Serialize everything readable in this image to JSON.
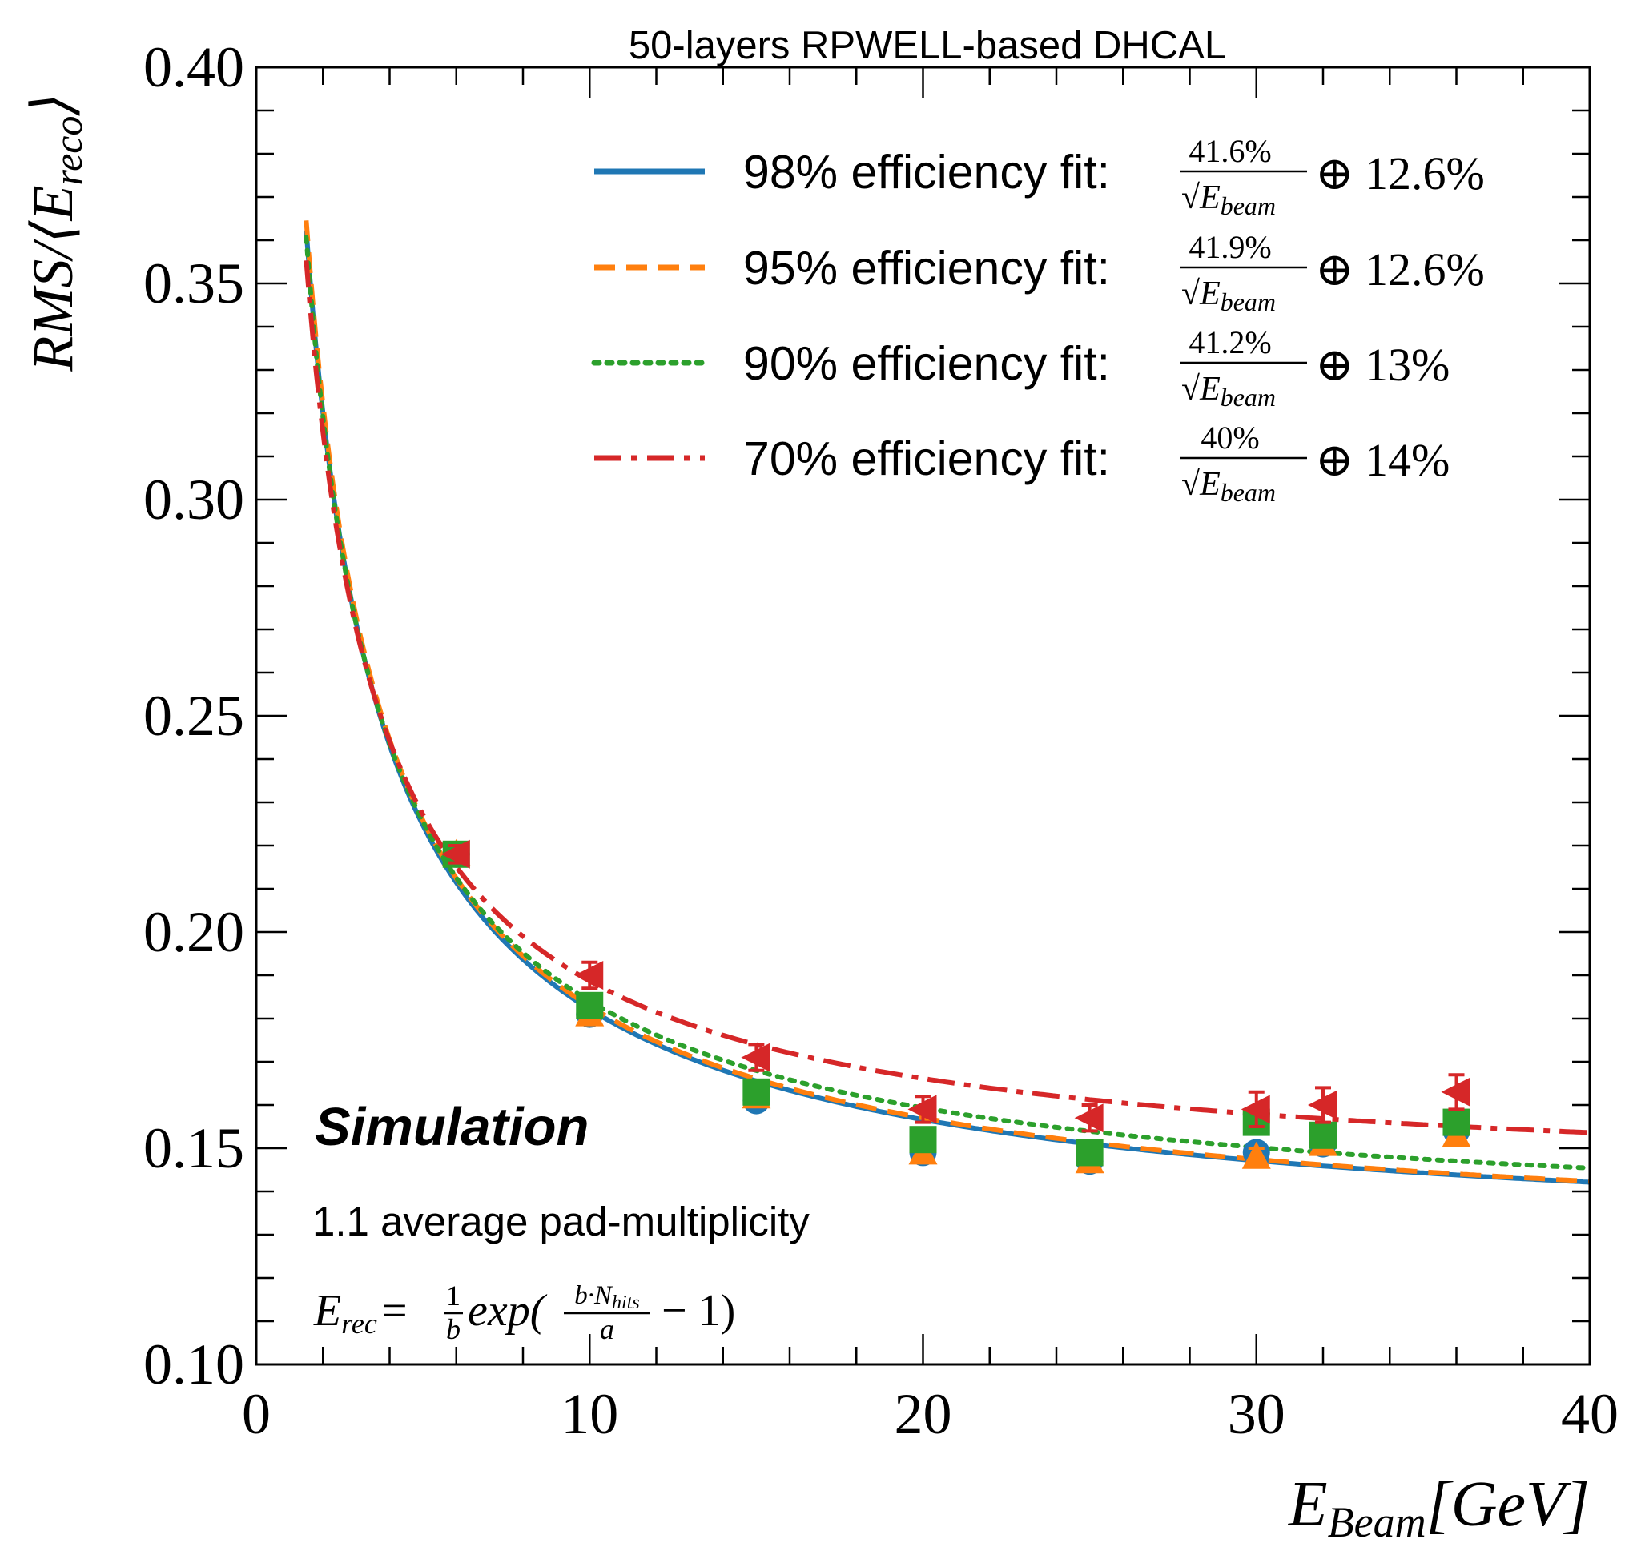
{
  "chart_data": {
    "type": "line",
    "title": "50-layers RPWELL-based DHCAL",
    "xlabel": {
      "main": "E",
      "sub": "Beam",
      "unit": "[GeV]"
    },
    "ylabel": {
      "pre": "RMS/⟨E",
      "sub": "reco",
      "post": "⟩"
    },
    "xlim": [
      0,
      40
    ],
    "ylim": [
      0.1,
      0.4
    ],
    "x_ticks": [
      0,
      10,
      20,
      30,
      40
    ],
    "x_tick_labels": [
      "0",
      "10",
      "20",
      "30",
      "40"
    ],
    "y_ticks": [
      0.1,
      0.15,
      0.2,
      0.25,
      0.3,
      0.35,
      0.4
    ],
    "y_tick_labels": [
      "0.10",
      "0.15",
      "0.20",
      "0.25",
      "0.30",
      "0.35",
      "0.40"
    ],
    "grid": false,
    "legend_position": "top-right",
    "series": [
      {
        "name": "98% efficiency fit",
        "label": "98% efficiency fit:",
        "stochastic_pct": 41.6,
        "constant_pct": 12.6,
        "numerator": "41.6%",
        "oplus": "⊕",
        "constant": "12.6%",
        "color": "#1f77b4",
        "linestyle": "solid",
        "marker": "circle",
        "x": [
          6,
          10,
          15,
          20,
          25,
          30,
          32,
          36
        ],
        "y": [
          0.218,
          0.181,
          0.161,
          0.149,
          0.147,
          0.149,
          0.151,
          0.154
        ],
        "yerr": [
          0.002,
          0.002,
          0.002,
          0.002,
          0.002,
          0.002,
          0.002,
          0.002
        ]
      },
      {
        "name": "95% efficiency fit",
        "label": "95% efficiency fit:",
        "stochastic_pct": 41.9,
        "constant_pct": 12.6,
        "numerator": "41.9%",
        "oplus": "⊕",
        "constant": "12.6%",
        "color": "#ff7f0e",
        "linestyle": "dashed",
        "marker": "triangle-up",
        "x": [
          6,
          10,
          15,
          20,
          25,
          30,
          32,
          36
        ],
        "y": [
          0.218,
          0.181,
          0.162,
          0.149,
          0.147,
          0.148,
          0.151,
          0.153
        ],
        "yerr": [
          0.002,
          0.002,
          0.002,
          0.002,
          0.002,
          0.002,
          0.002,
          0.002
        ]
      },
      {
        "name": "90% efficiency fit",
        "label": "90% efficiency fit:",
        "stochastic_pct": 41.2,
        "constant_pct": 13,
        "numerator": "41.2%",
        "oplus": "⊕",
        "constant": "13%",
        "color": "#2ca02c",
        "linestyle": "dotted",
        "marker": "square",
        "x": [
          6,
          10,
          15,
          20,
          25,
          30,
          32,
          36
        ],
        "y": [
          0.218,
          0.183,
          0.163,
          0.152,
          0.149,
          0.156,
          0.153,
          0.156
        ],
        "yerr": [
          0.002,
          0.002,
          0.002,
          0.002,
          0.002,
          0.002,
          0.002,
          0.002
        ]
      },
      {
        "name": "70% efficiency fit",
        "label": "70% efficiency fit:",
        "stochastic_pct": 40,
        "constant_pct": 14,
        "numerator": "40%",
        "oplus": "⊕",
        "constant": "14%",
        "color": "#d62728",
        "linestyle": "dashdot",
        "marker": "triangle-left",
        "x": [
          6,
          10,
          15,
          20,
          25,
          30,
          32,
          36
        ],
        "y": [
          0.218,
          0.19,
          0.171,
          0.159,
          0.157,
          0.159,
          0.16,
          0.163
        ],
        "yerr": [
          0.002,
          0.003,
          0.003,
          0.003,
          0.003,
          0.004,
          0.004,
          0.004
        ]
      }
    ],
    "legend_denominator": {
      "sqrt": "√",
      "main": "E",
      "sub": "beam"
    },
    "annotations": {
      "simulation": "Simulation",
      "multiplicity": "1.1 average pad-multiplicity",
      "formula": {
        "lhs_main": "E",
        "lhs_sub": "rec",
        "equals": "=",
        "frac1_num": "1",
        "frac1_den": "b",
        "exp_open": "exp(",
        "frac2_num_pre": "b·N",
        "frac2_num_sub": "hits",
        "frac2_den": "a",
        "exp_close": "− 1)"
      }
    }
  }
}
